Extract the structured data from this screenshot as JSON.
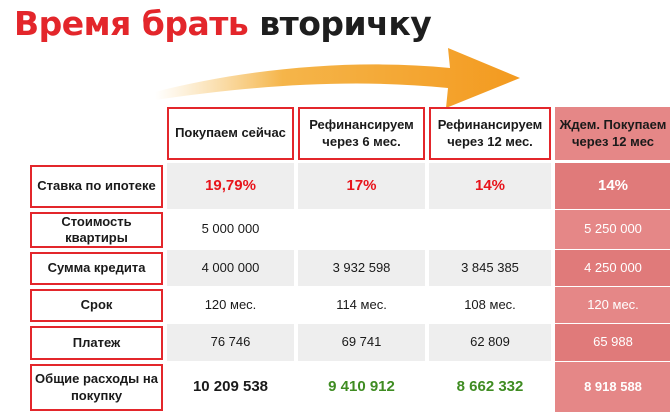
{
  "title": {
    "part1": "Время брать",
    "part2": "вторичку"
  },
  "colors": {
    "accent_red": "#e3262b",
    "green": "#3f8c22",
    "pink": "#e07a7a",
    "arrow": "#f4a12a"
  },
  "arrow": {
    "icon": "curved-arrow-icon"
  },
  "table": {
    "headers": [
      "",
      "Покупаем сейчас",
      "Рефинансируем через 6 мес.",
      "Рефинансируем через 12 мес.",
      "Ждем. Покупаем через 12 мес"
    ],
    "rows": [
      {
        "label": "Ставка по ипотеке",
        "values": [
          "19,79%",
          "17%",
          "14%",
          "14%"
        ]
      },
      {
        "label": "Стоимость квартиры",
        "values": [
          "5 000 000",
          "",
          "",
          "5 250 000"
        ]
      },
      {
        "label": "Сумма кредита",
        "values": [
          "4 000 000",
          "3 932 598",
          "3 845 385",
          "4 250 000"
        ]
      },
      {
        "label": "Срок",
        "values": [
          "120 мес.",
          "114 мес.",
          "108 мес.",
          "120 мес."
        ]
      },
      {
        "label": "Платеж",
        "values": [
          "76 746",
          "69 741",
          "62 809",
          "65 988"
        ]
      },
      {
        "label": "Общие расходы на покупку",
        "values": [
          "10 209 538",
          "9 410 912",
          "8 662 332",
          "8 918 588"
        ]
      }
    ]
  }
}
